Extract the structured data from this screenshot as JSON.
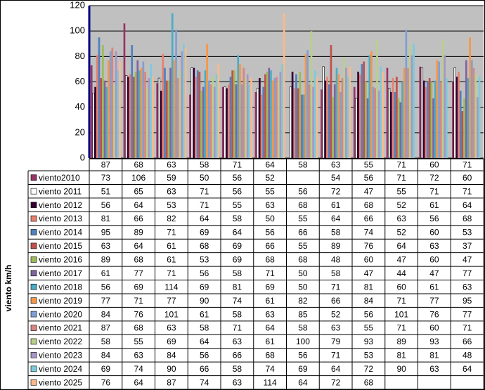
{
  "chart_data": {
    "type": "bar",
    "y_label": "viento km/h",
    "categories": [
      "87",
      "68",
      "63",
      "58",
      "71",
      "64",
      "58",
      "63",
      "55",
      "71",
      "60",
      "71"
    ],
    "ylim": [
      0,
      120
    ],
    "yticks": [
      0,
      20,
      40,
      60,
      80,
      100,
      120
    ],
    "grid": true,
    "plot_background": "#c0c0c0",
    "series": [
      {
        "name": "viento2010",
        "color": "#993366",
        "values": [
          73,
          106,
          59,
          50,
          56,
          52,
          null,
          54,
          56,
          71,
          72,
          60
        ]
      },
      {
        "name": "viento 2011",
        "color": "#ffffff",
        "values": [
          51,
          65,
          63,
          71,
          56,
          55,
          56,
          72,
          47,
          55,
          71,
          71
        ]
      },
      {
        "name": "viento 2012",
        "color": "#330033",
        "values": [
          56,
          64,
          53,
          71,
          55,
          63,
          68,
          61,
          68,
          52,
          61,
          64
        ]
      },
      {
        "name": "viento 2013",
        "color": "#e8806e",
        "values": [
          81,
          66,
          82,
          64,
          58,
          50,
          55,
          64,
          66,
          63,
          56,
          68
        ]
      },
      {
        "name": "viento 2014",
        "color": "#4f81bd",
        "values": [
          95,
          89,
          71,
          69,
          64,
          56,
          66,
          58,
          74,
          52,
          60,
          53
        ]
      },
      {
        "name": "viento 2015",
        "color": "#c0504d",
        "values": [
          63,
          64,
          61,
          68,
          69,
          66,
          55,
          89,
          76,
          64,
          63,
          37
        ]
      },
      {
        "name": "viento 2016",
        "color": "#9bbb59",
        "values": [
          89,
          68,
          61,
          53,
          69,
          68,
          68,
          48,
          60,
          47,
          60,
          47
        ]
      },
      {
        "name": "viento 2017",
        "color": "#8064a2",
        "values": [
          61,
          77,
          71,
          56,
          58,
          71,
          50,
          58,
          47,
          44,
          47,
          77
        ]
      },
      {
        "name": "viento 2018",
        "color": "#4bacc6",
        "values": [
          56,
          69,
          114,
          69,
          81,
          69,
          50,
          71,
          81,
          60,
          61,
          63
        ]
      },
      {
        "name": "viento 2019",
        "color": "#f79646",
        "values": [
          77,
          71,
          77,
          90,
          74,
          61,
          82,
          66,
          84,
          71,
          77,
          95
        ]
      },
      {
        "name": "viento 2020",
        "color": "#7f9fd4",
        "values": [
          84,
          76,
          101,
          61,
          58,
          63,
          85,
          52,
          56,
          101,
          76,
          77
        ]
      },
      {
        "name": "viento 2021",
        "color": "#d9867e",
        "values": [
          87,
          68,
          63,
          58,
          71,
          64,
          58,
          63,
          55,
          71,
          60,
          71
        ]
      },
      {
        "name": "viento 2022",
        "color": "#b9d08c",
        "values": [
          58,
          55,
          69,
          64,
          63,
          61,
          100,
          79,
          93,
          89,
          93,
          66
        ]
      },
      {
        "name": "viento 2023",
        "color": "#a896c4",
        "values": [
          84,
          63,
          84,
          56,
          66,
          68,
          56,
          71,
          53,
          81,
          81,
          48
        ]
      },
      {
        "name": "viento 2024",
        "color": "#7ccbdc",
        "values": [
          69,
          74,
          90,
          66,
          58,
          74,
          69,
          64,
          72,
          90,
          63,
          64
        ]
      },
      {
        "name": "viento 2025",
        "color": "#fbb98b",
        "values": [
          76,
          64,
          87,
          74,
          63,
          114,
          64,
          72,
          68,
          null,
          null,
          null
        ]
      }
    ]
  }
}
